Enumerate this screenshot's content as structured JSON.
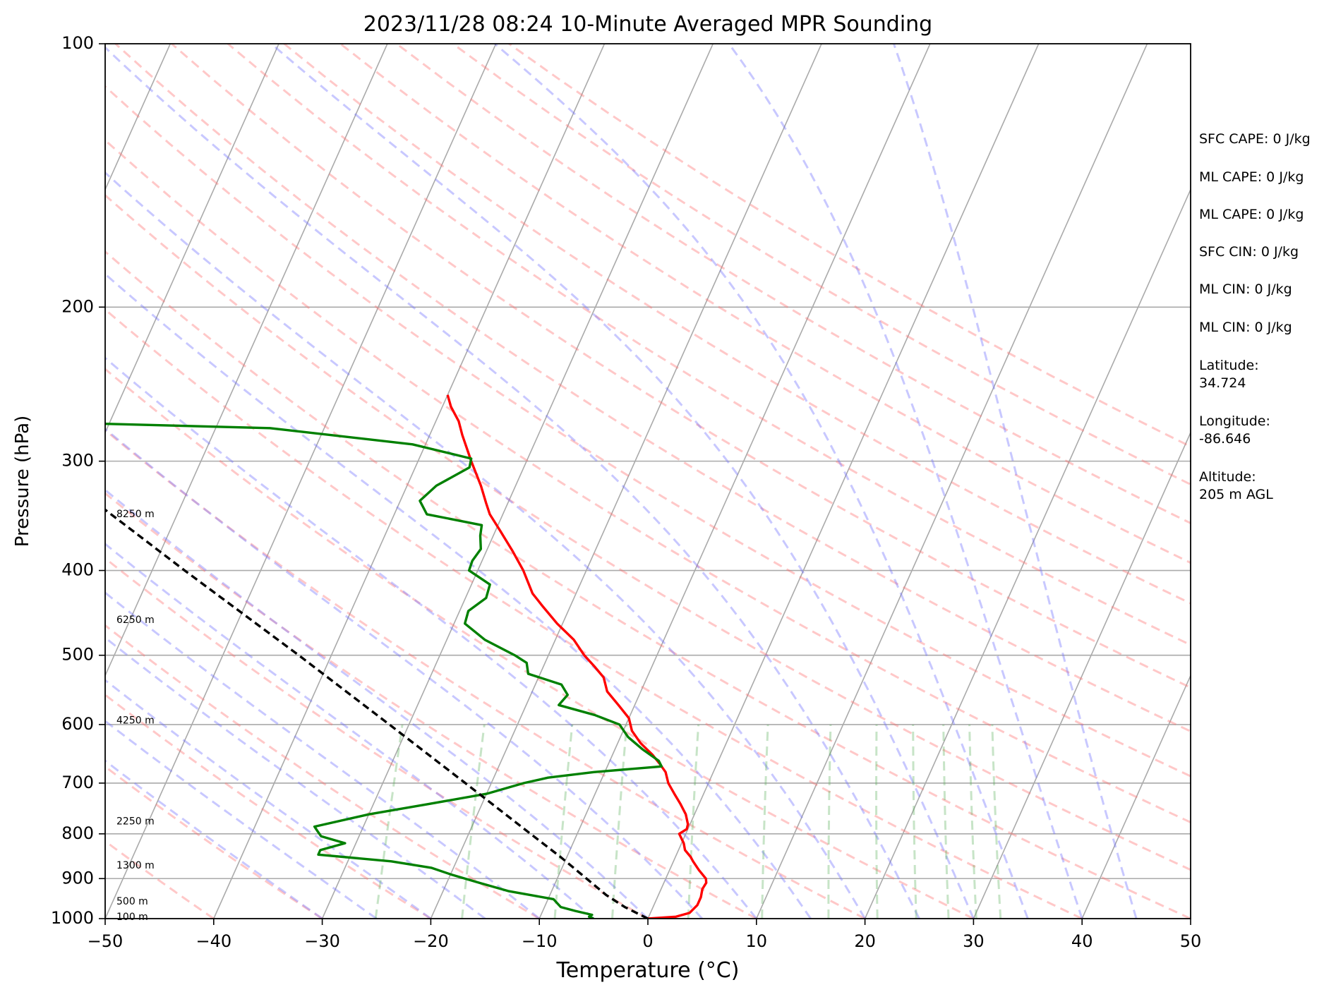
{
  "chart_data": {
    "type": "line",
    "title": "2023/11/28 08:24 10-Minute Averaged MPR Sounding",
    "xlabel": "Temperature (°C)",
    "ylabel": "Pressure (hPa)",
    "xlim": [
      -50,
      50
    ],
    "ylim": [
      1000,
      100
    ],
    "y_scale": "log",
    "x_ticks": [
      "−50",
      "−40",
      "−30",
      "−20",
      "−10",
      "0",
      "10",
      "20",
      "30",
      "40",
      "50"
    ],
    "y_ticks": [
      "100",
      "200",
      "300",
      "400",
      "500",
      "600",
      "700",
      "800",
      "900",
      "1000"
    ],
    "grid": true,
    "skew": true,
    "series": [
      {
        "role": "temperature",
        "color": "#ff0000",
        "points": [
          {
            "p": 1000,
            "t": 0.0
          },
          {
            "p": 995,
            "t": 2.5
          },
          {
            "p": 985,
            "t": 3.6
          },
          {
            "p": 965,
            "t": 4.0
          },
          {
            "p": 945,
            "t": 4.0
          },
          {
            "p": 925,
            "t": 3.8
          },
          {
            "p": 910,
            "t": 3.9
          },
          {
            "p": 900,
            "t": 3.7
          },
          {
            "p": 880,
            "t": 2.7
          },
          {
            "p": 860,
            "t": 1.8
          },
          {
            "p": 850,
            "t": 1.4
          },
          {
            "p": 835,
            "t": 0.6
          },
          {
            "p": 820,
            "t": 0.2
          },
          {
            "p": 800,
            "t": -0.6
          },
          {
            "p": 790,
            "t": -0.1
          },
          {
            "p": 780,
            "t": -0.2
          },
          {
            "p": 760,
            "t": -0.8
          },
          {
            "p": 740,
            "t": -1.7
          },
          {
            "p": 720,
            "t": -2.7
          },
          {
            "p": 700,
            "t": -3.7
          },
          {
            "p": 680,
            "t": -4.4
          },
          {
            "p": 665,
            "t": -5.3
          },
          {
            "p": 650,
            "t": -6.3
          },
          {
            "p": 630,
            "t": -7.9
          },
          {
            "p": 610,
            "t": -9.2
          },
          {
            "p": 590,
            "t": -10.0
          },
          {
            "p": 570,
            "t": -11.5
          },
          {
            "p": 550,
            "t": -13.1
          },
          {
            "p": 530,
            "t": -14.0
          },
          {
            "p": 515,
            "t": -15.3
          },
          {
            "p": 500,
            "t": -16.7
          },
          {
            "p": 480,
            "t": -18.3
          },
          {
            "p": 460,
            "t": -20.5
          },
          {
            "p": 440,
            "t": -22.5
          },
          {
            "p": 425,
            "t": -24.0
          },
          {
            "p": 400,
            "t": -25.8
          },
          {
            "p": 380,
            "t": -27.6
          },
          {
            "p": 360,
            "t": -29.6
          },
          {
            "p": 345,
            "t": -31.2
          },
          {
            "p": 335,
            "t": -32.0
          },
          {
            "p": 320,
            "t": -33.2
          },
          {
            "p": 300,
            "t": -35.1
          },
          {
            "p": 280,
            "t": -37.0
          },
          {
            "p": 270,
            "t": -37.9
          },
          {
            "p": 260,
            "t": -39.2
          },
          {
            "p": 252,
            "t": -40.0
          }
        ]
      },
      {
        "role": "dewpoint",
        "color": "#008000",
        "points": [
          {
            "p": 1000,
            "t": -5.0
          },
          {
            "p": 995,
            "t": -5.5
          },
          {
            "p": 990,
            "t": -5.3
          },
          {
            "p": 980,
            "t": -7.0
          },
          {
            "p": 970,
            "t": -8.5
          },
          {
            "p": 960,
            "t": -9.0
          },
          {
            "p": 950,
            "t": -9.5
          },
          {
            "p": 930,
            "t": -14.0
          },
          {
            "p": 910,
            "t": -17.0
          },
          {
            "p": 890,
            "t": -20.0
          },
          {
            "p": 875,
            "t": -22.0
          },
          {
            "p": 860,
            "t": -26.0
          },
          {
            "p": 845,
            "t": -33.0
          },
          {
            "p": 835,
            "t": -33.0
          },
          {
            "p": 820,
            "t": -31.0
          },
          {
            "p": 805,
            "t": -33.5
          },
          {
            "p": 795,
            "t": -34.0
          },
          {
            "p": 785,
            "t": -34.5
          },
          {
            "p": 760,
            "t": -30.0
          },
          {
            "p": 740,
            "t": -25.0
          },
          {
            "p": 720,
            "t": -20.0
          },
          {
            "p": 700,
            "t": -17.0
          },
          {
            "p": 690,
            "t": -15.0
          },
          {
            "p": 680,
            "t": -11.0
          },
          {
            "p": 670,
            "t": -5.0
          },
          {
            "p": 660,
            "t": -5.5
          },
          {
            "p": 640,
            "t": -7.5
          },
          {
            "p": 620,
            "t": -9.3
          },
          {
            "p": 600,
            "t": -10.6
          },
          {
            "p": 585,
            "t": -13.3
          },
          {
            "p": 570,
            "t": -17.0
          },
          {
            "p": 555,
            "t": -16.6
          },
          {
            "p": 540,
            "t": -17.6
          },
          {
            "p": 525,
            "t": -21.1
          },
          {
            "p": 510,
            "t": -21.7
          },
          {
            "p": 500,
            "t": -23.1
          },
          {
            "p": 480,
            "t": -26.5
          },
          {
            "p": 460,
            "t": -29.0
          },
          {
            "p": 445,
            "t": -29.2
          },
          {
            "p": 430,
            "t": -28.1
          },
          {
            "p": 415,
            "t": -28.3
          },
          {
            "p": 400,
            "t": -30.8
          },
          {
            "p": 390,
            "t": -30.9
          },
          {
            "p": 378,
            "t": -30.6
          },
          {
            "p": 365,
            "t": -31.2
          },
          {
            "p": 355,
            "t": -31.5
          },
          {
            "p": 345,
            "t": -37.0
          },
          {
            "p": 333,
            "t": -38.2
          },
          {
            "p": 320,
            "t": -37.3
          },
          {
            "p": 305,
            "t": -35.0
          },
          {
            "p": 298,
            "t": -35.2
          },
          {
            "p": 287,
            "t": -41.2
          },
          {
            "p": 275,
            "t": -55.0
          },
          {
            "p": 270,
            "t": -80.0
          }
        ]
      },
      {
        "role": "parcel",
        "color": "#000000",
        "style": "dashed",
        "points": [
          {
            "p": 1000,
            "t": 0.0
          },
          {
            "p": 970,
            "t": -2.6
          },
          {
            "p": 940,
            "t": -4.8
          },
          {
            "p": 900,
            "t": -7.3
          },
          {
            "p": 850,
            "t": -10.6
          },
          {
            "p": 800,
            "t": -14.3
          },
          {
            "p": 700,
            "t": -22.4
          },
          {
            "p": 600,
            "t": -31.8
          },
          {
            "p": 500,
            "t": -43.0
          },
          {
            "p": 400,
            "t": -57.0
          },
          {
            "p": 340,
            "t": -67.0
          },
          {
            "p": 300,
            "t": -74.5
          }
        ]
      }
    ],
    "background": {
      "dry_adiabats_theta_c": [
        -50,
        -40,
        -30,
        -20,
        -10,
        0,
        10,
        20,
        30,
        40,
        50,
        60,
        70,
        80,
        90,
        100,
        110,
        120,
        130,
        140,
        150,
        160
      ],
      "moist_adiabats_c": [
        -30,
        -25,
        -20,
        -15,
        -10,
        -5,
        0,
        5,
        10,
        15,
        20,
        25,
        30,
        35,
        40,
        45
      ],
      "mixing_ratios_gkg": [
        0.5,
        1,
        2,
        3,
        5,
        8,
        12,
        16,
        20,
        24,
        28,
        32
      ]
    },
    "height_labels": [
      {
        "text": "100 m",
        "p": 996
      },
      {
        "text": "500 m",
        "p": 956
      },
      {
        "text": "1300 m",
        "p": 870
      },
      {
        "text": "2250 m",
        "p": 775
      },
      {
        "text": "4250 m",
        "p": 594
      },
      {
        "text": "6250 m",
        "p": 456
      },
      {
        "text": "8250 m",
        "p": 345
      }
    ],
    "side_text": [
      "SFC CAPE: 0 J/kg",
      "ML CAPE: 0 J/kg",
      "ML CAPE: 0 J/kg",
      "SFC CIN: 0 J/kg",
      "ML CIN: 0 J/kg",
      "ML CIN: 0 J/kg",
      "Latitude:\n34.724",
      "Longitude:\n-86.646",
      "Altitude:\n205 m AGL"
    ]
  }
}
